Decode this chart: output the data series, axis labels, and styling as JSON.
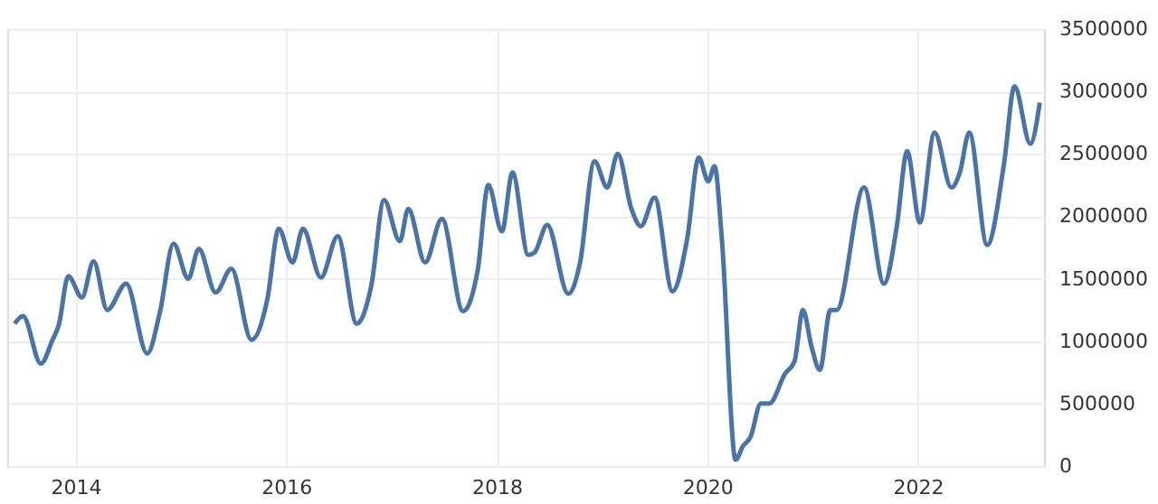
{
  "chart_data": {
    "type": "line",
    "x": [
      2013.42,
      2013.5,
      2013.67,
      2013.78,
      2013.84,
      2013.93,
      2014.06,
      2014.17,
      2014.3,
      2014.48,
      2014.68,
      2014.8,
      2014.93,
      2015.07,
      2015.17,
      2015.33,
      2015.48,
      2015.67,
      2015.82,
      2015.93,
      2016.06,
      2016.16,
      2016.33,
      2016.49,
      2016.67,
      2016.81,
      2016.93,
      2017.08,
      2017.16,
      2017.32,
      2017.48,
      2017.68,
      2017.82,
      2017.92,
      2018.05,
      2018.15,
      2018.3,
      2018.36,
      2018.48,
      2018.68,
      2018.79,
      2018.93,
      2019.05,
      2019.15,
      2019.28,
      2019.37,
      2019.5,
      2019.67,
      2019.81,
      2019.92,
      2020.01,
      2020.07,
      2020.14,
      2020.27,
      2020.34,
      2020.41,
      2020.51,
      2020.59,
      2020.74,
      2020.83,
      2020.91,
      2020.99,
      2021.07,
      2021.17,
      2021.23,
      2021.49,
      2021.68,
      2021.8,
      2021.9,
      2022.02,
      2022.16,
      2022.32,
      2022.4,
      2022.49,
      2022.66,
      2022.82,
      2022.92,
      2023.07,
      2023.16
    ],
    "series": [
      {
        "color": "#4a74a8",
        "values": [
          1140000,
          1200000,
          820000,
          1010000,
          1130000,
          1520000,
          1350000,
          1640000,
          1250000,
          1460000,
          900000,
          1230000,
          1780000,
          1500000,
          1740000,
          1390000,
          1580000,
          1010000,
          1330000,
          1900000,
          1630000,
          1900000,
          1510000,
          1840000,
          1140000,
          1450000,
          2130000,
          1800000,
          2060000,
          1630000,
          1980000,
          1240000,
          1570000,
          2250000,
          1880000,
          2350000,
          1690000,
          1710000,
          1930000,
          1380000,
          1620000,
          2440000,
          2230000,
          2500000,
          2060000,
          1920000,
          2150000,
          1400000,
          1820000,
          2470000,
          2280000,
          2400000,
          1810000,
          50000,
          160000,
          230000,
          500000,
          500000,
          740000,
          840000,
          1250000,
          960000,
          770000,
          1250000,
          1250000,
          2230000,
          1460000,
          1910000,
          2520000,
          1950000,
          2670000,
          2230000,
          2350000,
          2670000,
          1770000,
          2420000,
          3040000,
          2580000,
          2910000
        ]
      }
    ],
    "xlim": [
      2013.35,
      2023.2
    ],
    "xticks": [
      2014,
      2016,
      2018,
      2020,
      2022
    ],
    "ylim": [
      0,
      3500000
    ],
    "yticks": [
      0,
      500000,
      1000000,
      1500000,
      2000000,
      2500000,
      3000000,
      3500000
    ],
    "grid": true,
    "line_style": "solid",
    "marker": "none"
  }
}
